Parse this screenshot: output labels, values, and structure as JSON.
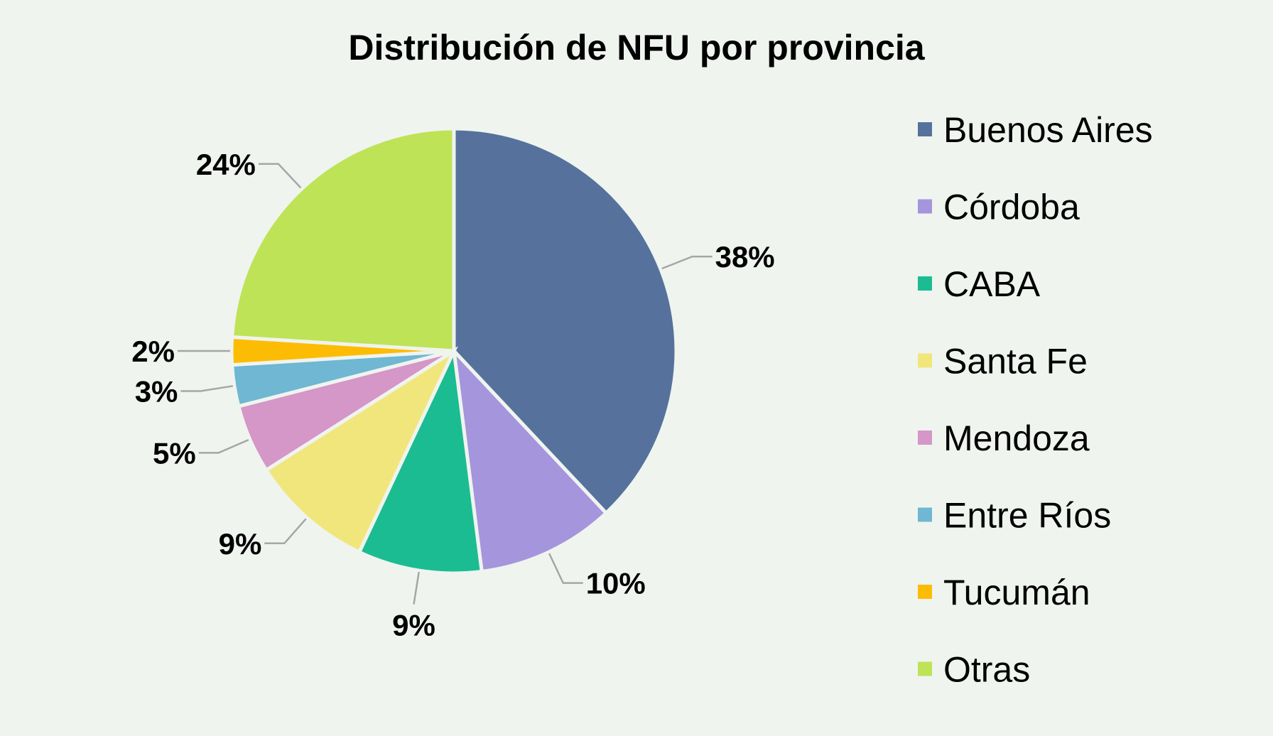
{
  "chart_data": {
    "type": "pie",
    "title": "Distribución de NFU por provincia",
    "categories": [
      "Buenos Aires",
      "Córdoba",
      "CABA",
      "Santa Fe",
      "Mendoza",
      "Entre Ríos",
      "Tucumán",
      "Otras"
    ],
    "values": [
      38,
      10,
      9,
      9,
      5,
      3,
      2,
      24
    ],
    "value_labels": [
      "38%",
      "10%",
      "9%",
      "9%",
      "5%",
      "3%",
      "2%",
      "24%"
    ],
    "colors": [
      "#56729c",
      "#a595dc",
      "#1bbc92",
      "#f1e67b",
      "#d596c8",
      "#6fb7d2",
      "#fcbc04",
      "#bee356"
    ],
    "legend_position": "right",
    "start_angle": "12 o'clock",
    "direction": "clockwise"
  }
}
